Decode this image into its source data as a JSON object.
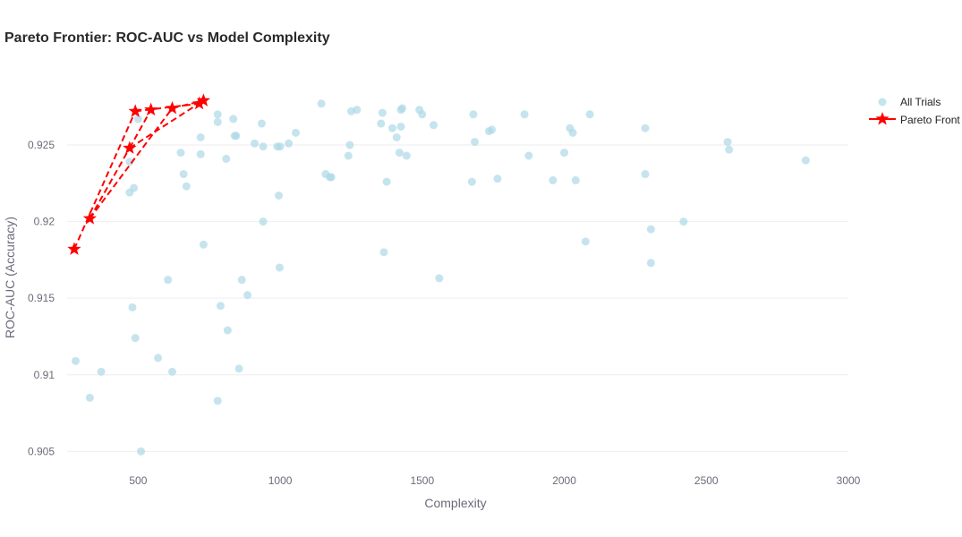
{
  "chart_data": {
    "type": "scatter",
    "title": "Pareto Frontier: ROC-AUC vs Model Complexity",
    "xlabel": "Complexity",
    "ylabel": "ROC-AUC (Accuracy)",
    "xlim": [
      250,
      3000
    ],
    "ylim": [
      0.9035,
      0.9295
    ],
    "xticks": [
      500,
      1000,
      1500,
      2000,
      2500,
      3000
    ],
    "yticks": [
      0.905,
      0.91,
      0.915,
      0.92,
      0.925
    ],
    "ytick_labels": [
      "0.905",
      "0.91",
      "0.915",
      "0.92",
      "0.925"
    ],
    "grid": true,
    "legend_position": "top-right",
    "colors": {
      "trials": "#add8e6",
      "pareto": "#ff0000",
      "grid": "#eeeeee"
    },
    "series": [
      {
        "name": "All Trials",
        "type": "scatter",
        "points": [
          [
            280,
            0.9109
          ],
          [
            330,
            0.9085
          ],
          [
            370,
            0.9102
          ],
          [
            470,
            0.9219
          ],
          [
            470,
            0.9239
          ],
          [
            480,
            0.9144
          ],
          [
            485,
            0.9222
          ],
          [
            490,
            0.9124
          ],
          [
            500,
            0.9267
          ],
          [
            510,
            0.905
          ],
          [
            570,
            0.9111
          ],
          [
            605,
            0.9162
          ],
          [
            620,
            0.9102
          ],
          [
            650,
            0.9245
          ],
          [
            660,
            0.9231
          ],
          [
            670,
            0.9223
          ],
          [
            720,
            0.9244
          ],
          [
            720,
            0.9255
          ],
          [
            730,
            0.9185
          ],
          [
            780,
            0.9265
          ],
          [
            780,
            0.9083
          ],
          [
            780,
            0.927
          ],
          [
            790,
            0.9145
          ],
          [
            810,
            0.9241
          ],
          [
            815,
            0.9129
          ],
          [
            835,
            0.9267
          ],
          [
            840,
            0.9256
          ],
          [
            845,
            0.9256
          ],
          [
            855,
            0.9104
          ],
          [
            865,
            0.9162
          ],
          [
            885,
            0.9152
          ],
          [
            910,
            0.9251
          ],
          [
            935,
            0.9264
          ],
          [
            940,
            0.9249
          ],
          [
            940,
            0.92
          ],
          [
            990,
            0.9249
          ],
          [
            995,
            0.9217
          ],
          [
            998,
            0.917
          ],
          [
            1000,
            0.9249
          ],
          [
            1030,
            0.9251
          ],
          [
            1055,
            0.9258
          ],
          [
            1145,
            0.9277
          ],
          [
            1160,
            0.9231
          ],
          [
            1175,
            0.9229
          ],
          [
            1180,
            0.9229
          ],
          [
            1240,
            0.9243
          ],
          [
            1245,
            0.925
          ],
          [
            1250,
            0.9272
          ],
          [
            1270,
            0.9273
          ],
          [
            1355,
            0.9264
          ],
          [
            1360,
            0.9271
          ],
          [
            1365,
            0.918
          ],
          [
            1375,
            0.9226
          ],
          [
            1395,
            0.9261
          ],
          [
            1410,
            0.9255
          ],
          [
            1420,
            0.9245
          ],
          [
            1425,
            0.9273
          ],
          [
            1425,
            0.9262
          ],
          [
            1430,
            0.9274
          ],
          [
            1445,
            0.9243
          ],
          [
            1490,
            0.9273
          ],
          [
            1500,
            0.927
          ],
          [
            1540,
            0.9263
          ],
          [
            1560,
            0.9163
          ],
          [
            1675,
            0.9226
          ],
          [
            1680,
            0.927
          ],
          [
            1685,
            0.9252
          ],
          [
            1735,
            0.9259
          ],
          [
            1745,
            0.926
          ],
          [
            1765,
            0.9228
          ],
          [
            1860,
            0.927
          ],
          [
            1875,
            0.9243
          ],
          [
            1960,
            0.9227
          ],
          [
            2000,
            0.9245
          ],
          [
            2020,
            0.9261
          ],
          [
            2030,
            0.9258
          ],
          [
            2040,
            0.9227
          ],
          [
            2075,
            0.9187
          ],
          [
            2090,
            0.927
          ],
          [
            2285,
            0.9231
          ],
          [
            2285,
            0.9261
          ],
          [
            2305,
            0.9195
          ],
          [
            2305,
            0.9173
          ],
          [
            2420,
            0.92
          ],
          [
            2575,
            0.9252
          ],
          [
            2580,
            0.9247
          ],
          [
            2850,
            0.924
          ]
        ]
      },
      {
        "name": "Pareto Front",
        "type": "line+markers",
        "points": [
          [
            275,
            0.9182
          ],
          [
            330,
            0.9202
          ],
          [
            470,
            0.9248
          ],
          [
            490,
            0.9272
          ],
          [
            545,
            0.9273
          ],
          [
            620,
            0.9274
          ],
          [
            715,
            0.9277
          ],
          [
            730,
            0.9279
          ]
        ],
        "segments": [
          [
            [
              275,
              0.9182
            ],
            [
              490,
              0.9272
            ]
          ],
          [
            [
              330,
              0.9202
            ],
            [
              470,
              0.9248
            ]
          ],
          [
            [
              470,
              0.9248
            ],
            [
              545,
              0.9273
            ]
          ],
          [
            [
              330,
              0.9202
            ],
            [
              620,
              0.9274
            ]
          ],
          [
            [
              490,
              0.9272
            ],
            [
              715,
              0.9277
            ]
          ],
          [
            [
              620,
              0.9274
            ],
            [
              730,
              0.9279
            ]
          ],
          [
            [
              470,
              0.9248
            ],
            [
              730,
              0.9279
            ]
          ]
        ]
      }
    ]
  }
}
